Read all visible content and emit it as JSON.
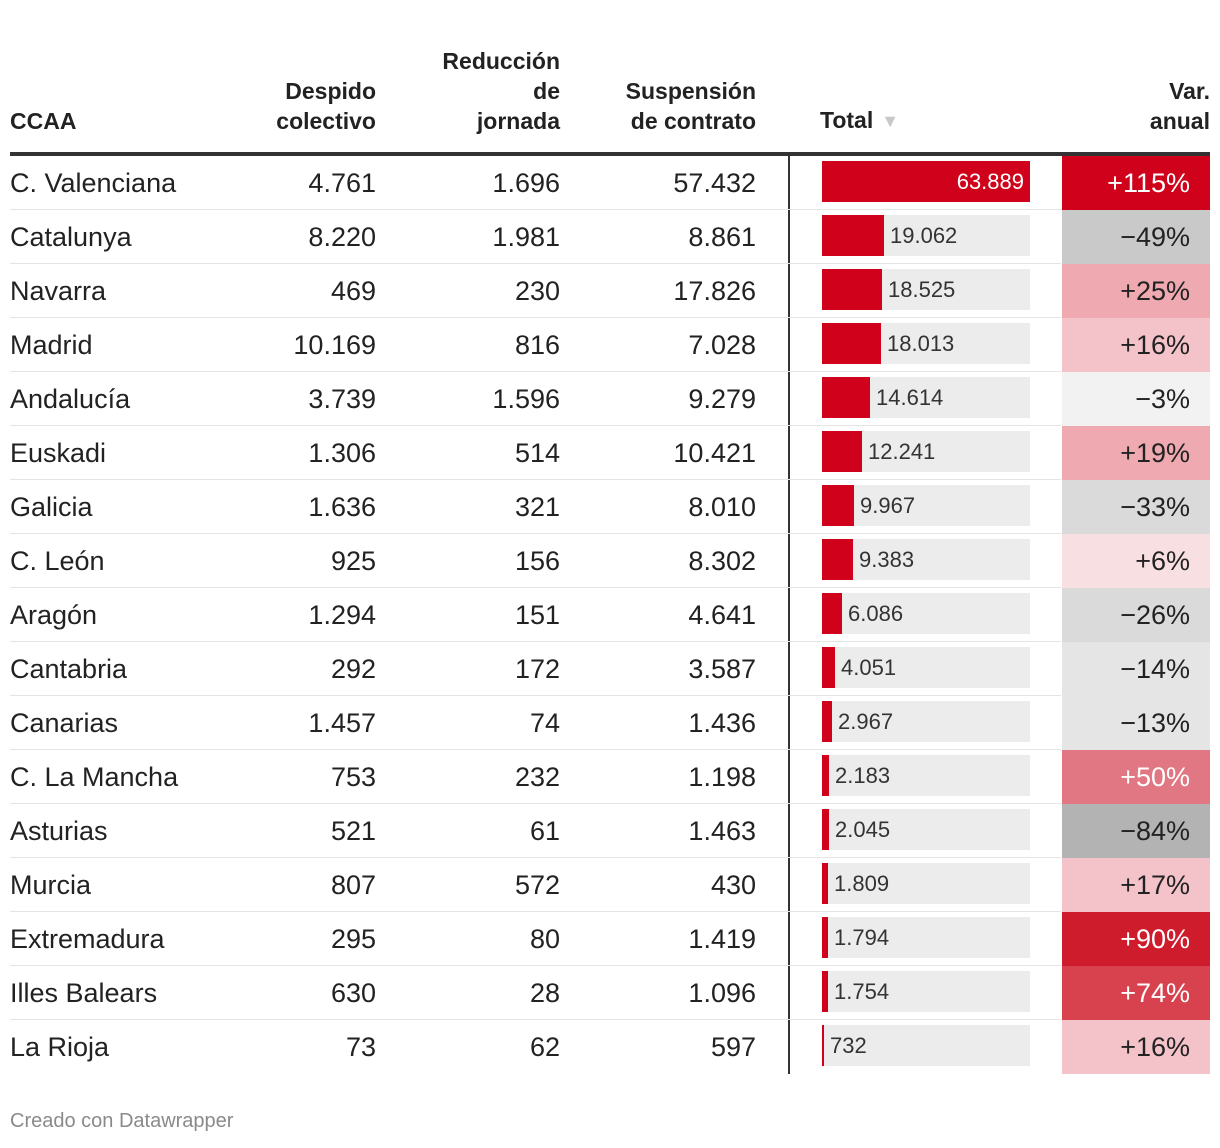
{
  "headers": {
    "ccaa": "CCAA",
    "despido": [
      "Despido",
      "colectivo"
    ],
    "reduccion": [
      "Reducción",
      "de",
      "jornada"
    ],
    "suspension": [
      "Suspensión",
      "de contrato"
    ],
    "total": "Total",
    "var": [
      "Var.",
      "anual"
    ]
  },
  "footer": "Creado con Datawrapper",
  "colors": {
    "bar": "#d0021b",
    "bar_track": "#ececec",
    "positive_scale": [
      "#f8dfe2",
      "#f3c3c9",
      "#eea9b1",
      "#e17783",
      "#d8424f",
      "#cf1c2c",
      "#d0021b"
    ],
    "negative_scale": [
      "#f2f2f2",
      "#e5e5e5",
      "#dadada",
      "#c9c9c9",
      "#b3b3b3"
    ]
  },
  "chart_data": {
    "type": "table",
    "title": "",
    "sort": "Total descending",
    "total_max": 63889,
    "columns": [
      "CCAA",
      "Despido colectivo",
      "Reducción de jornada",
      "Suspensión de contrato",
      "Total",
      "Var. anual"
    ],
    "rows": [
      {
        "ccaa": "C. Valenciana",
        "despido": "4.761",
        "reduccion": "1.696",
        "suspension": "57.432",
        "total": 63889,
        "total_label": "63.889",
        "var": "+115%",
        "var_value": 115
      },
      {
        "ccaa": "Catalunya",
        "despido": "8.220",
        "reduccion": "1.981",
        "suspension": "8.861",
        "total": 19062,
        "total_label": "19.062",
        "var": "−49%",
        "var_value": -49
      },
      {
        "ccaa": "Navarra",
        "despido": "469",
        "reduccion": "230",
        "suspension": "17.826",
        "total": 18525,
        "total_label": "18.525",
        "var": "+25%",
        "var_value": 25
      },
      {
        "ccaa": "Madrid",
        "despido": "10.169",
        "reduccion": "816",
        "suspension": "7.028",
        "total": 18013,
        "total_label": "18.013",
        "var": "+16%",
        "var_value": 16
      },
      {
        "ccaa": "Andalucía",
        "despido": "3.739",
        "reduccion": "1.596",
        "suspension": "9.279",
        "total": 14614,
        "total_label": "14.614",
        "var": "−3%",
        "var_value": -3
      },
      {
        "ccaa": "Euskadi",
        "despido": "1.306",
        "reduccion": "514",
        "suspension": "10.421",
        "total": 12241,
        "total_label": "12.241",
        "var": "+19%",
        "var_value": 19
      },
      {
        "ccaa": "Galicia",
        "despido": "1.636",
        "reduccion": "321",
        "suspension": "8.010",
        "total": 9967,
        "total_label": "9.967",
        "var": "−33%",
        "var_value": -33
      },
      {
        "ccaa": "C. León",
        "despido": "925",
        "reduccion": "156",
        "suspension": "8.302",
        "total": 9383,
        "total_label": "9.383",
        "var": "+6%",
        "var_value": 6
      },
      {
        "ccaa": "Aragón",
        "despido": "1.294",
        "reduccion": "151",
        "suspension": "4.641",
        "total": 6086,
        "total_label": "6.086",
        "var": "−26%",
        "var_value": -26
      },
      {
        "ccaa": "Cantabria",
        "despido": "292",
        "reduccion": "172",
        "suspension": "3.587",
        "total": 4051,
        "total_label": "4.051",
        "var": "−14%",
        "var_value": -14
      },
      {
        "ccaa": "Canarias",
        "despido": "1.457",
        "reduccion": "74",
        "suspension": "1.436",
        "total": 2967,
        "total_label": "2.967",
        "var": "−13%",
        "var_value": -13
      },
      {
        "ccaa": "C. La Mancha",
        "despido": "753",
        "reduccion": "232",
        "suspension": "1.198",
        "total": 2183,
        "total_label": "2.183",
        "var": "+50%",
        "var_value": 50
      },
      {
        "ccaa": "Asturias",
        "despido": "521",
        "reduccion": "61",
        "suspension": "1.463",
        "total": 2045,
        "total_label": "2.045",
        "var": "−84%",
        "var_value": -84
      },
      {
        "ccaa": "Murcia",
        "despido": "807",
        "reduccion": "572",
        "suspension": "430",
        "total": 1809,
        "total_label": "1.809",
        "var": "+17%",
        "var_value": 17
      },
      {
        "ccaa": "Extremadura",
        "despido": "295",
        "reduccion": "80",
        "suspension": "1.419",
        "total": 1794,
        "total_label": "1.794",
        "var": "+90%",
        "var_value": 90
      },
      {
        "ccaa": "Illes Balears",
        "despido": "630",
        "reduccion": "28",
        "suspension": "1.096",
        "total": 1754,
        "total_label": "1.754",
        "var": "+74%",
        "var_value": 74
      },
      {
        "ccaa": "La Rioja",
        "despido": "73",
        "reduccion": "62",
        "suspension": "597",
        "total": 732,
        "total_label": "732",
        "var": "+16%",
        "var_value": 16
      }
    ]
  }
}
